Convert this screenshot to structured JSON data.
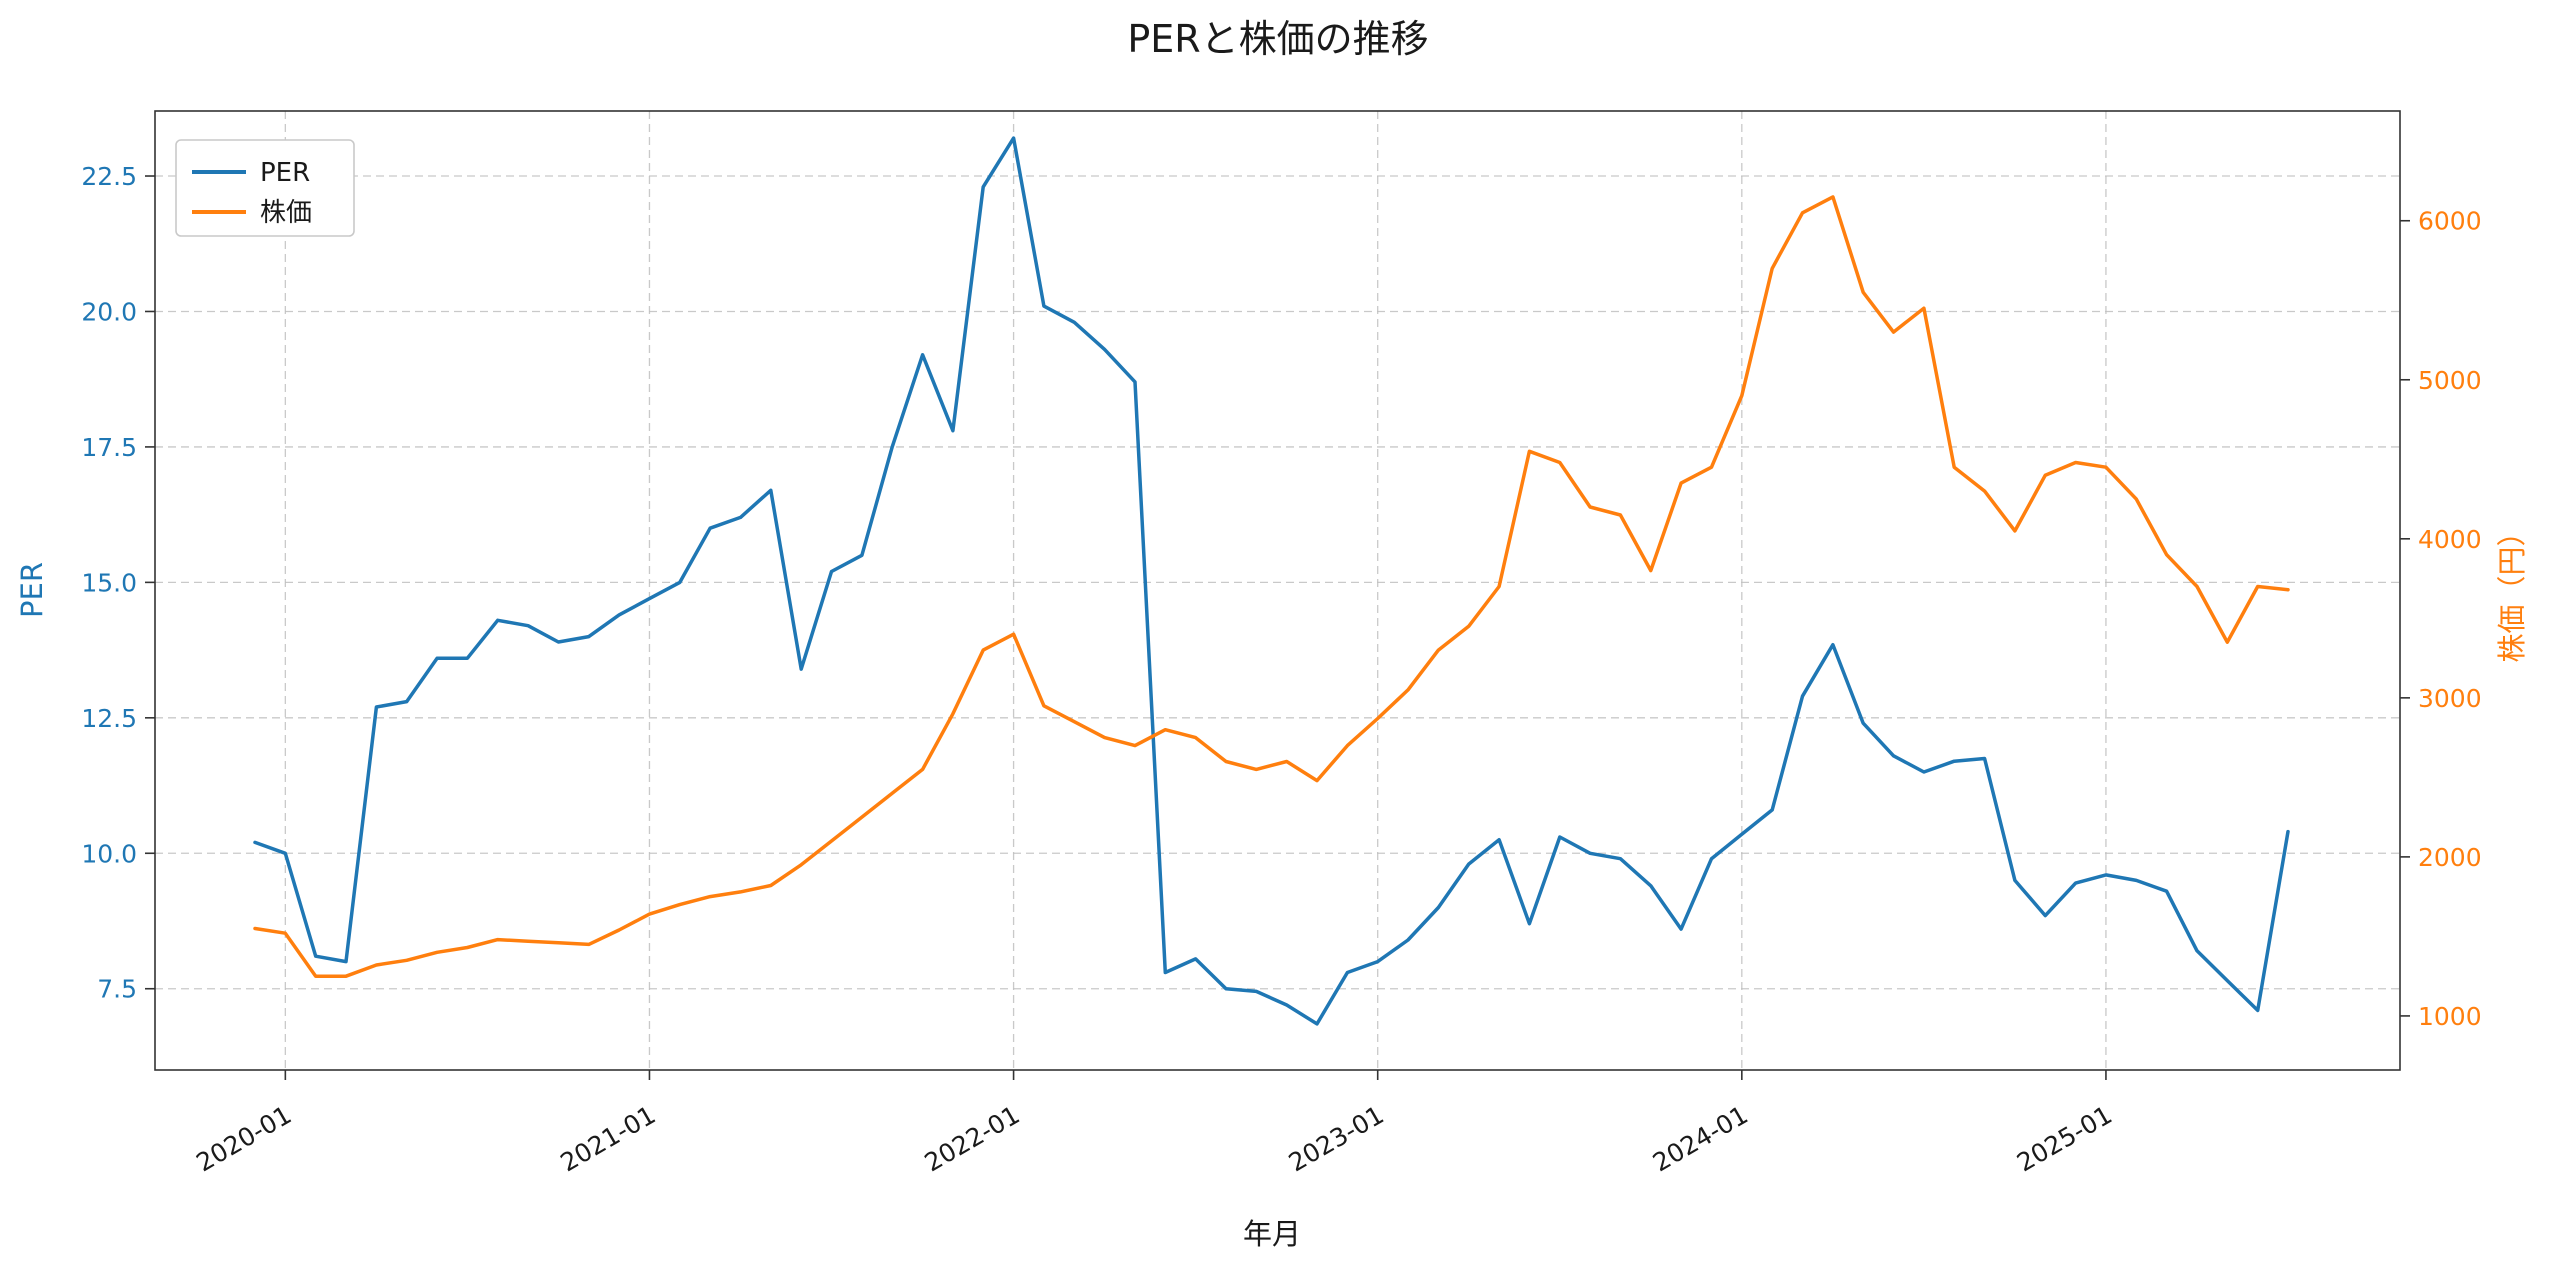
{
  "chart": {
    "title": "PERと株価の推移",
    "xlabel": "年月",
    "ylabel_left": "PER",
    "ylabel_right": "株価（円）",
    "legend": [
      "PER",
      "株価"
    ],
    "colors": {
      "per": "#1f77b4",
      "kabuka": "#ff7f0e"
    }
  },
  "chart_data": {
    "type": "line",
    "title": "PERと株価の推移",
    "xlabel": "年月",
    "ylabel_left": "PER",
    "ylabel_right": "株価（円）",
    "grid": true,
    "legend_position": "upper left",
    "xtick_labels": [
      "2020-01",
      "2021-01",
      "2022-01",
      "2023-01",
      "2024-01",
      "2025-01"
    ],
    "yticks_left": [
      7.5,
      10.0,
      12.5,
      15.0,
      17.5,
      20.0,
      22.5
    ],
    "yticks_right": [
      1000,
      2000,
      3000,
      4000,
      5000,
      6000
    ],
    "ylim_left": [
      6.0,
      23.7
    ],
    "ylim_right": [
      660,
      6690
    ],
    "x": [
      "2019-12",
      "2020-01",
      "2020-02",
      "2020-03",
      "2020-04",
      "2020-05",
      "2020-06",
      "2020-07",
      "2020-08",
      "2020-09",
      "2020-10",
      "2020-11",
      "2020-12",
      "2021-01",
      "2021-02",
      "2021-03",
      "2021-04",
      "2021-05",
      "2021-06",
      "2021-07",
      "2021-08",
      "2021-09",
      "2021-10",
      "2021-11",
      "2021-12",
      "2022-01",
      "2022-02",
      "2022-03",
      "2022-04",
      "2022-05",
      "2022-06",
      "2022-07",
      "2022-08",
      "2022-09",
      "2022-10",
      "2022-11",
      "2022-12",
      "2023-01",
      "2023-02",
      "2023-03",
      "2023-04",
      "2023-05",
      "2023-06",
      "2023-07",
      "2023-08",
      "2023-09",
      "2023-10",
      "2023-11",
      "2023-12",
      "2024-01",
      "2024-02",
      "2024-03",
      "2024-04",
      "2024-05",
      "2024-06",
      "2024-07",
      "2024-08",
      "2024-09",
      "2024-10",
      "2024-11",
      "2024-12",
      "2025-01",
      "2025-02",
      "2025-03",
      "2025-04",
      "2025-05",
      "2025-06",
      "2025-07"
    ],
    "series": [
      {
        "name": "PER",
        "axis": "left",
        "color": "#1f77b4",
        "values": [
          10.2,
          10.0,
          8.1,
          8.0,
          12.7,
          12.8,
          13.6,
          13.6,
          14.3,
          14.2,
          13.9,
          14.0,
          14.4,
          14.7,
          15.0,
          16.0,
          16.2,
          16.7,
          13.4,
          15.2,
          15.5,
          17.5,
          19.2,
          17.8,
          22.3,
          23.2,
          20.1,
          19.8,
          19.3,
          18.7,
          7.8,
          8.05,
          7.5,
          7.45,
          7.2,
          6.85,
          7.8,
          8.0,
          8.4,
          9.0,
          9.8,
          10.25,
          8.7,
          10.3,
          10.0,
          9.9,
          9.4,
          8.6,
          9.9,
          10.35,
          10.8,
          12.9,
          13.85,
          12.4,
          11.8,
          11.5,
          11.7,
          11.75,
          9.5,
          8.85,
          9.45,
          9.6,
          9.5,
          9.3,
          8.2,
          7.65,
          7.1,
          10.4
        ]
      },
      {
        "name": "株価",
        "axis": "right",
        "color": "#ff7f0e",
        "values": [
          1550,
          1520,
          1250,
          1250,
          1320,
          1350,
          1400,
          1430,
          1480,
          1470,
          1460,
          1450,
          1540,
          1640,
          1700,
          1750,
          1780,
          1820,
          1950,
          2100,
          2250,
          2400,
          2550,
          2900,
          3300,
          3400,
          2950,
          2850,
          2750,
          2700,
          2800,
          2750,
          2600,
          2550,
          2600,
          2480,
          2700,
          2870,
          3050,
          3300,
          3450,
          3700,
          4550,
          4480,
          4200,
          4150,
          3800,
          4350,
          4450,
          4900,
          5700,
          6050,
          6150,
          5550,
          5300,
          5450,
          4450,
          4300,
          4050,
          4400,
          4480,
          4450,
          4250,
          3900,
          3700,
          3350,
          3700,
          3680
        ]
      }
    ]
  }
}
